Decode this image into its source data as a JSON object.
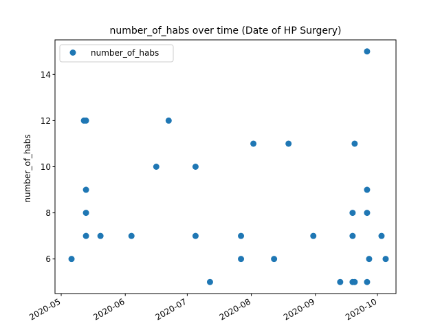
{
  "chart_data": {
    "type": "scatter",
    "title": "number_of_habs over time (Date of HP Surgery)",
    "xlabel": "",
    "ylabel": "number_of_habs",
    "x_tick_labels": [
      "2020-05",
      "2020-06",
      "2020-07",
      "2020-08",
      "2020-09",
      "2020-10"
    ],
    "y_ticks": [
      6,
      8,
      10,
      12,
      14
    ],
    "xlim": [
      "2020-04-28",
      "2020-10-10"
    ],
    "ylim": [
      4.5,
      15.5
    ],
    "grid": false,
    "legend_position": "upper-left",
    "marker_color": "#1f77b4",
    "series": [
      {
        "name": "number_of_habs",
        "points": [
          {
            "x": "2020-05-06",
            "y": 6
          },
          {
            "x": "2020-05-12",
            "y": 12
          },
          {
            "x": "2020-05-13",
            "y": 12
          },
          {
            "x": "2020-05-13",
            "y": 9
          },
          {
            "x": "2020-05-13",
            "y": 8
          },
          {
            "x": "2020-05-13",
            "y": 7
          },
          {
            "x": "2020-05-20",
            "y": 7
          },
          {
            "x": "2020-06-04",
            "y": 7
          },
          {
            "x": "2020-06-16",
            "y": 10
          },
          {
            "x": "2020-06-22",
            "y": 12
          },
          {
            "x": "2020-07-05",
            "y": 10
          },
          {
            "x": "2020-07-05",
            "y": 7
          },
          {
            "x": "2020-07-12",
            "y": 5
          },
          {
            "x": "2020-07-27",
            "y": 7
          },
          {
            "x": "2020-07-27",
            "y": 6
          },
          {
            "x": "2020-08-02",
            "y": 11
          },
          {
            "x": "2020-08-12",
            "y": 6
          },
          {
            "x": "2020-08-19",
            "y": 11
          },
          {
            "x": "2020-08-31",
            "y": 7
          },
          {
            "x": "2020-09-13",
            "y": 5
          },
          {
            "x": "2020-09-19",
            "y": 8
          },
          {
            "x": "2020-09-19",
            "y": 7
          },
          {
            "x": "2020-09-19",
            "y": 5
          },
          {
            "x": "2020-09-20",
            "y": 11
          },
          {
            "x": "2020-09-20",
            "y": 5
          },
          {
            "x": "2020-09-26",
            "y": 15
          },
          {
            "x": "2020-09-26",
            "y": 9
          },
          {
            "x": "2020-09-26",
            "y": 8
          },
          {
            "x": "2020-09-26",
            "y": 5
          },
          {
            "x": "2020-09-27",
            "y": 6
          },
          {
            "x": "2020-10-03",
            "y": 7
          },
          {
            "x": "2020-10-05",
            "y": 6
          }
        ]
      }
    ]
  }
}
